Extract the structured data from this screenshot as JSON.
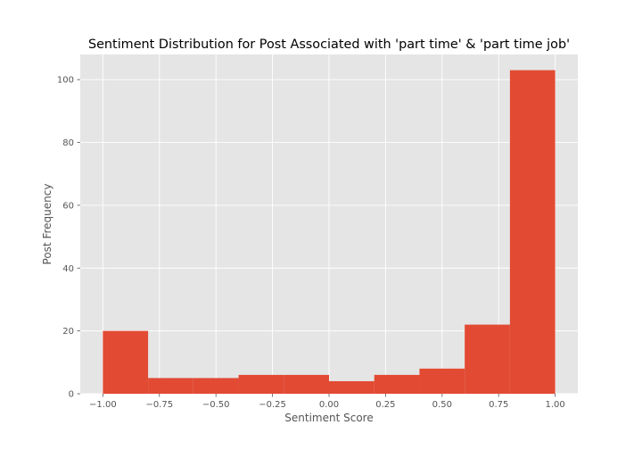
{
  "chart_data": {
    "type": "bar",
    "title": "Sentiment Distribution for Post Associated with 'part time' & 'part time job'",
    "xlabel": "Sentiment Score",
    "ylabel": "Post Frequency",
    "bins": [
      {
        "x0": -1.0,
        "x1": -0.8,
        "count": 20
      },
      {
        "x0": -0.8,
        "x1": -0.6,
        "count": 5
      },
      {
        "x0": -0.6,
        "x1": -0.4,
        "count": 5
      },
      {
        "x0": -0.4,
        "x1": -0.2,
        "count": 6
      },
      {
        "x0": -0.2,
        "x1": 0.0,
        "count": 6
      },
      {
        "x0": 0.0,
        "x1": 0.2,
        "count": 4
      },
      {
        "x0": 0.2,
        "x1": 0.4,
        "count": 6
      },
      {
        "x0": 0.4,
        "x1": 0.6,
        "count": 8
      },
      {
        "x0": 0.6,
        "x1": 0.8,
        "count": 22
      },
      {
        "x0": 0.8,
        "x1": 1.0,
        "count": 103
      }
    ],
    "xlim": [
      -1.1,
      1.1
    ],
    "ylim": [
      0,
      108
    ],
    "xticks": [
      -1.0,
      -0.75,
      -0.5,
      -0.25,
      0.0,
      0.25,
      0.5,
      0.75,
      1.0
    ],
    "xtick_labels": [
      "−1.00",
      "−0.75",
      "−0.50",
      "−0.25",
      "0.00",
      "0.25",
      "0.50",
      "0.75",
      "1.00"
    ],
    "yticks": [
      0,
      20,
      40,
      60,
      80,
      100
    ],
    "ytick_labels": [
      "0",
      "20",
      "40",
      "60",
      "80",
      "100"
    ],
    "grid": true,
    "colors": {
      "bar": "#E24A33",
      "plot_background": "#E5E5E5",
      "grid": "#FFFFFF",
      "text": "#555555"
    }
  }
}
